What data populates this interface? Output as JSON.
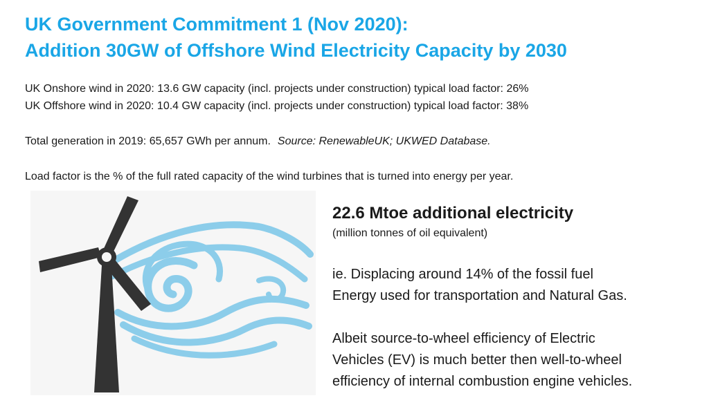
{
  "title": {
    "line1": "UK Government Commitment 1 (Nov 2020):",
    "line2": "Addition 30GW of Offshore Wind Electricity Capacity by 2030"
  },
  "info": {
    "onshore": "UK Onshore wind in 2020:  13.6 GW capacity (incl. projects under construction)  typical load factor: 26%",
    "offshore": "UK Offshore wind in 2020: 10.4 GW capacity  (incl. projects under construction)  typical load factor: 38%",
    "total_generation": "Total generation in 2019:  65,657 GWh per annum.",
    "source": "Source:  RenewableUK; UKWED Database.",
    "load_factor_definition": "Load factor is the % of the full rated capacity of the wind turbines that is turned into energy per year."
  },
  "highlight": {
    "headline": "22.6 Mtoe additional electricity",
    "subhead": "(million tonnes of oil equivalent)",
    "paragraph1": [
      "ie. Displacing around 14% of the fossil fuel",
      "Energy used for transportation and Natural Gas."
    ],
    "paragraph2": [
      "Albeit source-to-wheel efficiency of Electric",
      "Vehicles (EV) is much better then well-to-wheel",
      "efficiency of internal combustion engine vehicles."
    ]
  },
  "illustration": {
    "icon": "wind-turbine-icon",
    "turbine_color": "#333333",
    "wind_color": "#8ccdea",
    "background": "#f6f6f6"
  },
  "colors": {
    "title": "#1aa6e6",
    "text": "#1a1a1a"
  }
}
